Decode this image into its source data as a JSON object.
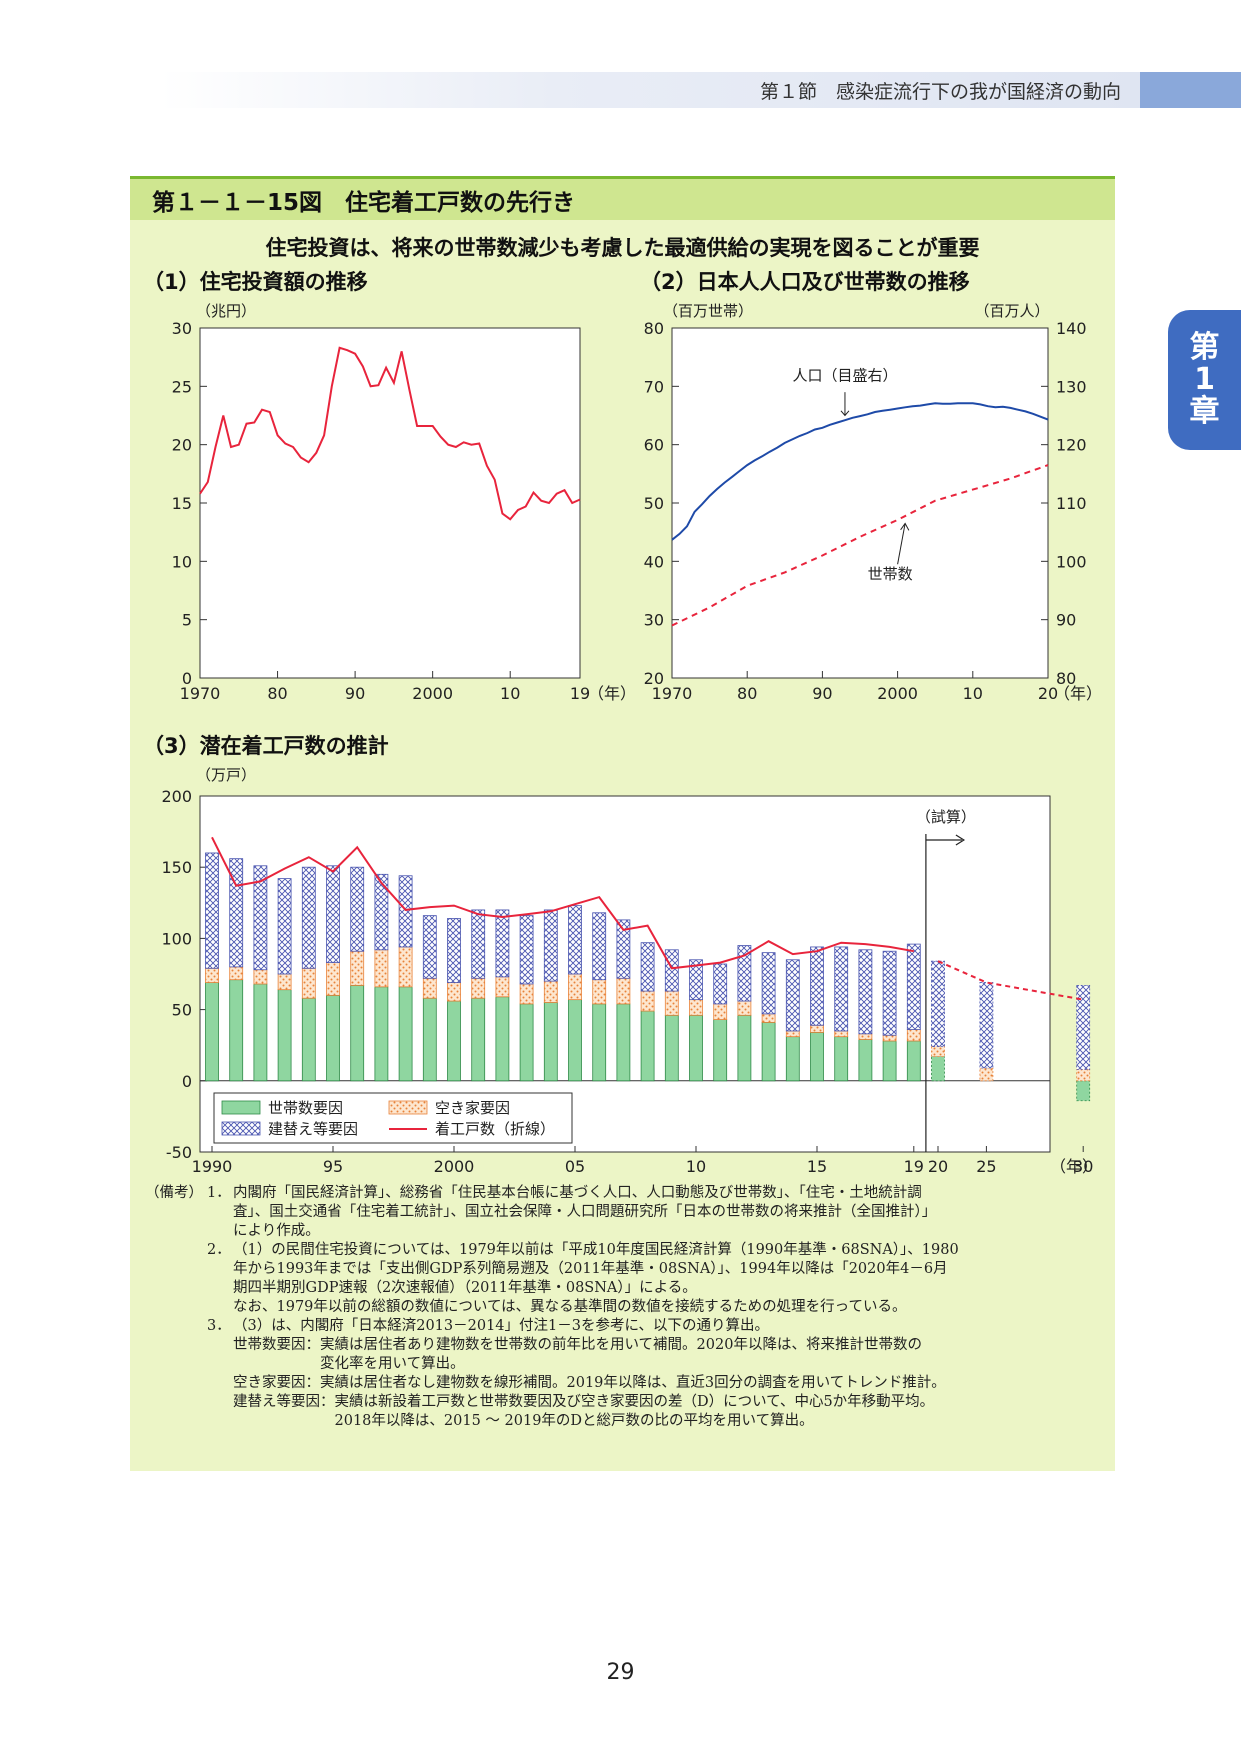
{
  "header": {
    "section": "第１節　感染症流行下の我が国経済の動向",
    "chapter_tab": [
      "第",
      "1",
      "章"
    ]
  },
  "figure": {
    "title": "第１－１－15図　住宅着工戸数の先行き",
    "subtitle": "住宅投資は、将来の世帯数減少も考慮した最適供給の実現を図ることが重要"
  },
  "chart_data": [
    {
      "type": "line",
      "title": "（1）住宅投資額の推移",
      "ylabel": "（兆円）",
      "xunit": "（年）",
      "xlim": [
        1970,
        2019
      ],
      "ylim": [
        0,
        30
      ],
      "yticks": [
        "0",
        "5",
        "10",
        "15",
        "20",
        "25",
        "30"
      ],
      "xticks": [
        {
          "x": 1970,
          "label": "1970"
        },
        {
          "x": 1980,
          "label": "80"
        },
        {
          "x": 1990,
          "label": "90"
        },
        {
          "x": 2000,
          "label": "2000"
        },
        {
          "x": 2010,
          "label": "10"
        },
        {
          "x": 2019,
          "label": "19"
        }
      ],
      "series": [
        {
          "color": "#e8243c",
          "x": [
            1970,
            1971,
            1972,
            1973,
            1974,
            1975,
            1976,
            1977,
            1978,
            1979,
            1980,
            1981,
            1982,
            1983,
            1984,
            1985,
            1986,
            1987,
            1988,
            1989,
            1990,
            1991,
            1992,
            1993,
            1994,
            1995,
            1996,
            1997,
            1998,
            1999,
            2000,
            2001,
            2002,
            2003,
            2004,
            2005,
            2006,
            2007,
            2008,
            2009,
            2010,
            2011,
            2012,
            2013,
            2014,
            2015,
            2016,
            2017,
            2018,
            2019
          ],
          "values": [
            15.8,
            16.8,
            19.8,
            22.5,
            19.8,
            20.0,
            21.8,
            21.9,
            23.0,
            22.8,
            20.8,
            20.1,
            19.8,
            18.9,
            18.5,
            19.3,
            20.8,
            25.0,
            28.3,
            28.1,
            27.8,
            26.7,
            25.0,
            25.1,
            26.6,
            25.3,
            28.0,
            24.7,
            21.6,
            21.6,
            21.6,
            20.7,
            20.0,
            19.8,
            20.2,
            20.0,
            20.1,
            18.2,
            17.0,
            14.1,
            13.6,
            14.4,
            14.7,
            15.9,
            15.2,
            15.0,
            15.8,
            16.1,
            15.0,
            15.3
          ]
        }
      ]
    },
    {
      "type": "line",
      "title": "（2）日本人人口及び世帯数の推移",
      "ylabel": "（百万世帯）",
      "ylabel_right": "（百万人）",
      "xunit": "（年）",
      "xlim": [
        1970,
        2020
      ],
      "ylim": [
        20,
        80
      ],
      "ylim_right": [
        80,
        140
      ],
      "yticks": [
        "20",
        "30",
        "40",
        "50",
        "60",
        "70",
        "80"
      ],
      "yticks_right": [
        "80",
        "90",
        "100",
        "110",
        "120",
        "130",
        "140"
      ],
      "xticks": [
        {
          "x": 1970,
          "label": "1970"
        },
        {
          "x": 1980,
          "label": "80"
        },
        {
          "x": 1990,
          "label": "90"
        },
        {
          "x": 2000,
          "label": "2000"
        },
        {
          "x": 2010,
          "label": "10"
        },
        {
          "x": 2020,
          "label": "20"
        }
      ],
      "series": [
        {
          "name": "人口（目盛右）",
          "axis": "right",
          "color": "#1e4aa8",
          "style": "solid",
          "x": [
            1970,
            1971,
            1972,
            1973,
            1974,
            1975,
            1976,
            1977,
            1978,
            1979,
            1980,
            1981,
            1982,
            1983,
            1984,
            1985,
            1986,
            1987,
            1988,
            1989,
            1990,
            1991,
            1992,
            1993,
            1994,
            1995,
            1996,
            1997,
            1998,
            1999,
            2000,
            2001,
            2002,
            2003,
            2004,
            2005,
            2006,
            2007,
            2008,
            2009,
            2010,
            2011,
            2012,
            2013,
            2014,
            2015,
            2016,
            2017,
            2018,
            2019,
            2020
          ],
          "values": [
            103.7,
            104.7,
            106.0,
            108.5,
            109.8,
            111.2,
            112.4,
            113.5,
            114.5,
            115.5,
            116.5,
            117.3,
            118.0,
            118.8,
            119.5,
            120.3,
            120.9,
            121.5,
            122.0,
            122.6,
            122.9,
            123.4,
            123.8,
            124.2,
            124.6,
            124.9,
            125.2,
            125.6,
            125.8,
            126.0,
            126.2,
            126.4,
            126.6,
            126.7,
            126.9,
            127.1,
            127.0,
            127.0,
            127.1,
            127.1,
            127.1,
            126.9,
            126.6,
            126.4,
            126.5,
            126.3,
            126.0,
            125.7,
            125.3,
            124.8,
            124.3
          ]
        },
        {
          "name": "世帯数",
          "axis": "left",
          "color": "#e8243c",
          "style": "dashed",
          "x": [
            1970,
            1975,
            1980,
            1985,
            1990,
            1995,
            2000,
            2005,
            2010,
            2015,
            2020
          ],
          "values": [
            29.0,
            32.1,
            35.8,
            38.1,
            41.0,
            44.2,
            47.1,
            50.4,
            52.3,
            54.2,
            56.5
          ]
        }
      ]
    },
    {
      "type": "bar",
      "stacked": true,
      "title": "（3）潜在着工戸数の推計",
      "ylabel": "（万戸）",
      "xunit": "（年）",
      "annotation": "（試算）",
      "ylim": [
        -50,
        200
      ],
      "yticks": [
        "-50",
        "0",
        "50",
        "100",
        "150",
        "200"
      ],
      "xticks": [
        {
          "x": 1990,
          "label": "1990"
        },
        {
          "x": 1995,
          "label": "95"
        },
        {
          "x": 2000,
          "label": "2000"
        },
        {
          "x": 2005,
          "label": "05"
        },
        {
          "x": 2010,
          "label": "10"
        },
        {
          "x": 2015,
          "label": "15"
        },
        {
          "x": 2019,
          "label": "19"
        },
        {
          "x": 2020,
          "label": "20"
        },
        {
          "x": 2025,
          "label": "25"
        },
        {
          "x": 2030,
          "label": "30"
        }
      ],
      "x": [
        1990,
        1991,
        1992,
        1993,
        1994,
        1995,
        1996,
        1997,
        1998,
        1999,
        2000,
        2001,
        2002,
        2003,
        2004,
        2005,
        2006,
        2007,
        2008,
        2009,
        2010,
        2011,
        2012,
        2013,
        2014,
        2015,
        2016,
        2017,
        2018,
        2019,
        2020,
        2025,
        2030
      ],
      "series": [
        {
          "name": "世帯数要因",
          "values": [
            69,
            71,
            68,
            64,
            58,
            60,
            67,
            66,
            66,
            58,
            56,
            58,
            59,
            54,
            55,
            57,
            54,
            54,
            49,
            46,
            46,
            43,
            46,
            41,
            31,
            34,
            31,
            29,
            28,
            28,
            17,
            0,
            -14
          ]
        },
        {
          "name": "空き家要因",
          "values": [
            10,
            9,
            10,
            11,
            21,
            23,
            24,
            26,
            28,
            14,
            13,
            14,
            14,
            14,
            15,
            18,
            17,
            18,
            14,
            17,
            11,
            11,
            10,
            6,
            4,
            5,
            4,
            4,
            4,
            8,
            7,
            9,
            8
          ]
        },
        {
          "name": "建替え等要因",
          "values": [
            81,
            76,
            73,
            67,
            71,
            68,
            59,
            53,
            50,
            44,
            45,
            48,
            47,
            48,
            50,
            48,
            47,
            41,
            34,
            29,
            28,
            28,
            39,
            43,
            50,
            55,
            59,
            59,
            59,
            60,
            60,
            60,
            59
          ]
        }
      ],
      "line": {
        "name": "着工戸数（折線）",
        "x": [
          1990,
          1991,
          1992,
          1993,
          1994,
          1995,
          1996,
          1997,
          1998,
          1999,
          2000,
          2001,
          2002,
          2003,
          2004,
          2005,
          2006,
          2007,
          2008,
          2009,
          2010,
          2011,
          2012,
          2013,
          2014,
          2015,
          2016,
          2017,
          2018,
          2019
        ],
        "values": [
          171,
          137,
          140,
          149,
          157,
          147,
          164,
          139,
          120,
          122,
          123,
          117,
          115,
          117,
          119,
          124,
          129,
          106,
          109,
          79,
          81,
          83,
          88,
          98,
          89,
          91,
          97,
          96,
          94,
          91
        ],
        "forecast_x": [
          2020,
          2025,
          2030
        ],
        "forecast_values": [
          84,
          69,
          57
        ]
      },
      "legend": [
        "世帯数要因",
        "空き家要因",
        "建替え等要因",
        "着工戸数（折線）"
      ]
    }
  ],
  "notes": {
    "lead": "（備考）",
    "items": [
      {
        "num": "1．",
        "lines": [
          "内閣府「国民経済計算」、総務省「住民基本台帳に基づく人口、人口動態及び世帯数」、「住宅・土地統計調",
          "査」、国土交通省「住宅着工統計」、国立社会保障・人口問題研究所「日本の世帯数の将来推計（全国推計）」",
          "により作成。"
        ]
      },
      {
        "num": "2．",
        "lines": [
          "（1）の民間住宅投資については、1979年以前は「平成10年度国民経済計算（1990年基準・68SNA）」、1980",
          "年から1993年までは「支出側GDP系列簡易遡及（2011年基準・08SNA）」、1994年以降は「2020年4－6月",
          "期四半期別GDP速報（2次速報値）（2011年基準・08SNA）」による。",
          "なお、1979年以前の総額の数値については、異なる基準間の数値を接続するための処理を行っている。"
        ]
      },
      {
        "num": "3．",
        "lines": [
          "（3）は、内閣府「日本経済2013－2014」付注1－3を参考に、以下の通り算出。",
          "世帯数要因：実績は居住者あり建物数を世帯数の前年比を用いて補間。2020年以降は、将来推計世帯数の",
          "　　　　　　変化率を用いて算出。",
          "空き家要因：実績は居住者なし建物数を線形補間。2019年以降は、直近3回分の調査を用いてトレンド推計。",
          "建替え等要因：実績は新設着工戸数と世帯数要因及び空き家要因の差（D）について、中心5か年移動平均。",
          "　　　　　　　2018年以降は、2015 ～ 2019年のDと総戸数の比の平均を用いて算出。"
        ]
      }
    ]
  },
  "page_number": "29"
}
